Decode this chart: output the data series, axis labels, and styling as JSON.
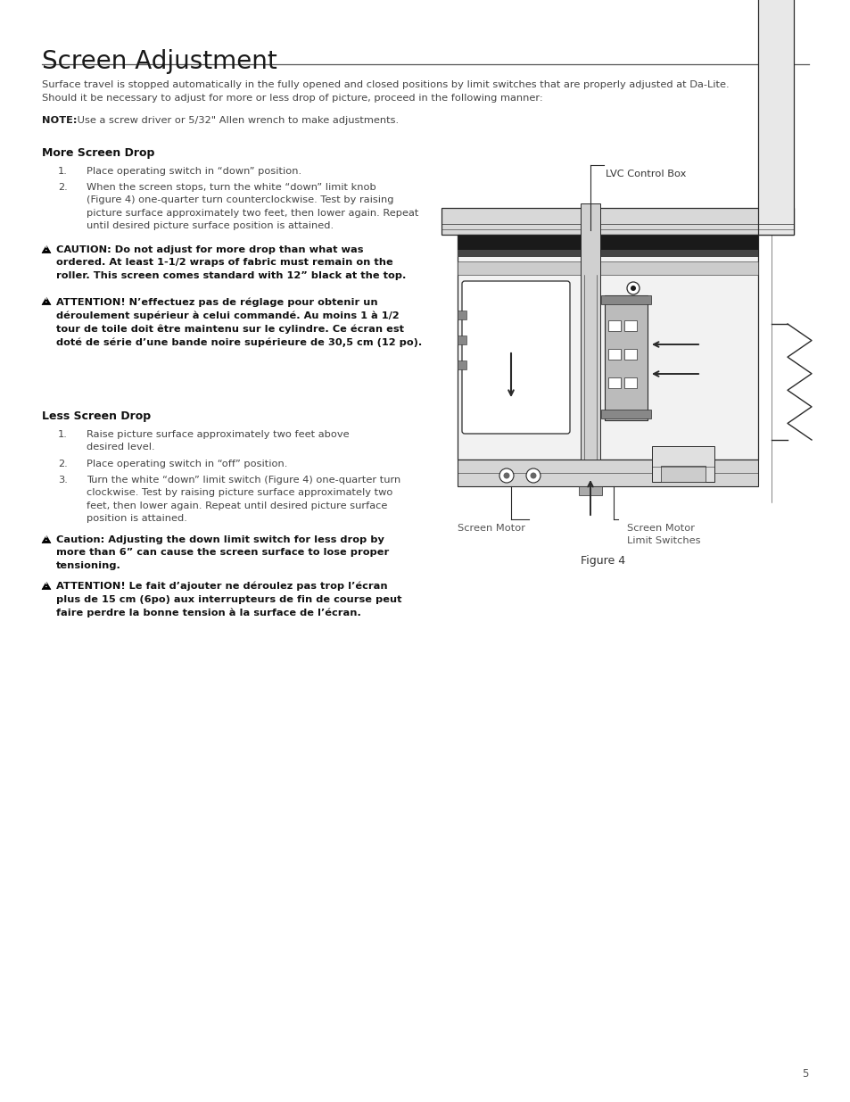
{
  "title": "Screen Adjustment",
  "bg_color": "#ffffff",
  "text_color": "#333333",
  "line_color": "#000000",
  "intro_text": "Surface travel is stopped automatically in the fully opened and closed positions by limit switches that are properly adjusted at Da-Lite.\nShould it be necessary to adjust for more or less drop of picture, proceed in the following manner:",
  "note_bold": "NOTE:",
  "note_text": " Use a screw driver or 5/32\" Allen wrench to make adjustments.",
  "section1_title": "More Screen Drop",
  "section1_items": [
    "Place operating switch in “down” position.",
    "When the screen stops, turn the white “down” limit knob\n(Figure 4) one-quarter turn counterclockwise. Test by raising\npicture surface approximately two feet, then lower again. Repeat\nuntil desired picture surface position is attained."
  ],
  "caution1_bold": "CAUTION: Do not adjust for more drop than what was\nordered. At least 1-1/2 wraps of fabric must remain on the\nroller. This screen comes standard with 12” black at the top.",
  "caution2_bold": "ATTENTION! N’effectuez pas de réglage pour obtenir un\ndéroulement supérieur à celui commandé. Au moins 1 à 1/2\ntour de toile doit être maintenu sur le cylindre. Ce écran est\ndoté de série d’une bande noire supérieure de 30,5 cm (12 po).",
  "section2_title": "Less Screen Drop",
  "section2_items": [
    "Raise picture surface approximately two feet above\ndesired level.",
    "Place operating switch in “off” position.",
    "Turn the white “down” limit switch (Figure 4) one-quarter turn\nclockwise. Test by raising picture surface approximately two\nfeet, then lower again. Repeat until desired picture surface\nposition is attained."
  ],
  "caution3_bold": "Caution: Adjusting the down limit switch for less drop by\nmore than 6” can cause the screen surface to lose proper\ntensioning.",
  "caution4_bold": "ATTENTION! Le fait d’ajouter ne déroulez pas trop l’écran\nplus de 15 cm (6po) aux interrupteurs de fin de course peut\nfaire perdre la bonne tension à la surface de l’écran.",
  "figure_label": "Figure 4",
  "lvc_label": "LVC Control Box",
  "screen_motor_label": "Screen Motor",
  "limit_switches_label": "Screen Motor\nLimit Switches",
  "page_number": "5"
}
